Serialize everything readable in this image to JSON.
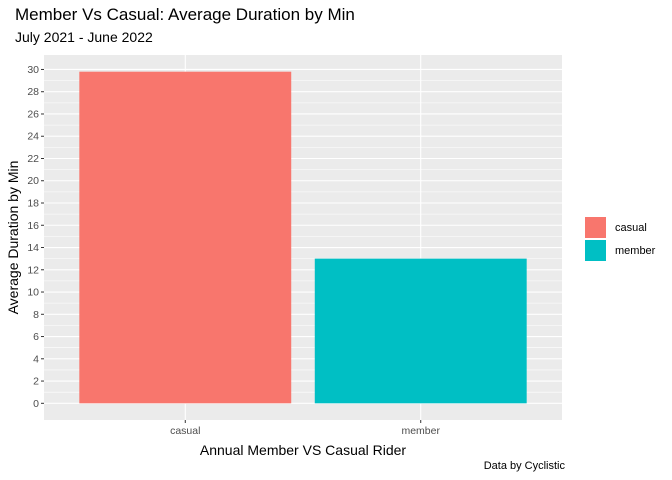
{
  "title": "Member Vs Casual: Average Duration by Min",
  "subtitle": "July 2021 - June 2022",
  "caption": "Data by Cyclistic",
  "colors": {
    "panel": "#EBEBEB",
    "grid": "#FFFFFF",
    "tick_text": "#4D4D4D"
  },
  "chart_data": {
    "type": "bar",
    "title": "Member Vs Casual: Average Duration by Min",
    "subtitle": "July 2021 - June 2022",
    "xlabel": "Annual Member VS Casual Rider",
    "ylabel": "Average Duration by Min",
    "categories": [
      "casual",
      "member"
    ],
    "values": [
      29.8,
      13.0
    ],
    "colors": [
      "#F8766D",
      "#00BFC4"
    ],
    "ylim": [
      -1.5,
      31.3
    ],
    "yticks": [
      0,
      2,
      4,
      6,
      8,
      10,
      12,
      14,
      16,
      18,
      20,
      22,
      24,
      26,
      28,
      30
    ],
    "ytick_labels": [
      "0",
      "2",
      "4",
      "6",
      "8",
      "10",
      "12",
      "14",
      "16",
      "18",
      "20",
      "22",
      "24",
      "26",
      "28",
      "30"
    ],
    "grid": true,
    "legend": {
      "position": "right",
      "entries": [
        "casual",
        "member"
      ]
    }
  }
}
